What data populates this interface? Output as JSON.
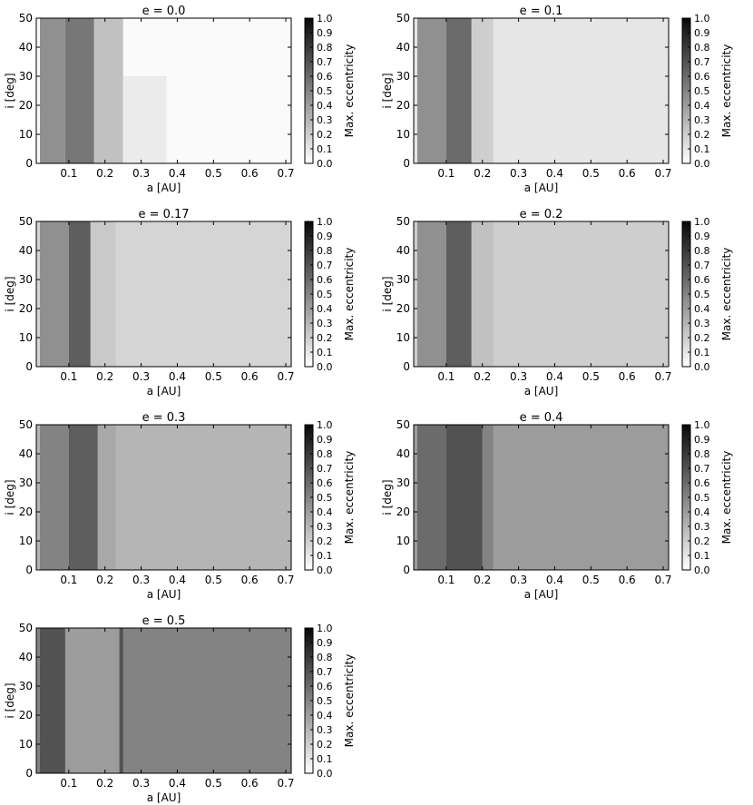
{
  "chart_data": [
    {
      "type": "heatmap",
      "title": "e = 0.0",
      "xlabel": "a [AU]",
      "ylabel": "i [deg]",
      "xlim": [
        0.01,
        0.715
      ],
      "ylim": [
        0,
        50
      ],
      "xticks": [
        "0.1",
        "0.2",
        "0.3",
        "0.4",
        "0.5",
        "0.6",
        "0.7"
      ],
      "yticks": [
        "0",
        "10",
        "20",
        "30",
        "40",
        "50"
      ],
      "background_level": 0.02,
      "features": [
        {
          "a_start": 0.02,
          "a_end": 0.09,
          "level": 0.45,
          "i_max": 50
        },
        {
          "a_start": 0.09,
          "a_end": 0.17,
          "level": 0.55,
          "i_max": 50
        },
        {
          "a_start": 0.17,
          "a_end": 0.25,
          "level": 0.25,
          "i_max": 50
        },
        {
          "a_start": 0.25,
          "a_end": 0.37,
          "level": 0.08,
          "i_max": 30
        }
      ],
      "colorbar": {
        "label": "Max. eccentricity",
        "min": 0.0,
        "max": 1.0,
        "ticks": [
          "0.0",
          "0.1",
          "0.2",
          "0.3",
          "0.4",
          "0.5",
          "0.6",
          "0.7",
          "0.8",
          "0.9",
          "1.0"
        ]
      }
    },
    {
      "type": "heatmap",
      "title": "e = 0.1",
      "xlabel": "a [AU]",
      "ylabel": "i [deg]",
      "xlim": [
        0.01,
        0.715
      ],
      "ylim": [
        0,
        50
      ],
      "xticks": [
        "0.1",
        "0.2",
        "0.3",
        "0.4",
        "0.5",
        "0.6",
        "0.7"
      ],
      "yticks": [
        "0",
        "10",
        "20",
        "30",
        "40",
        "50"
      ],
      "background_level": 0.1,
      "features": [
        {
          "a_start": 0.02,
          "a_end": 0.1,
          "level": 0.45,
          "i_max": 50
        },
        {
          "a_start": 0.1,
          "a_end": 0.17,
          "level": 0.6,
          "i_max": 50
        },
        {
          "a_start": 0.17,
          "a_end": 0.23,
          "level": 0.2,
          "i_max": 50
        }
      ],
      "colorbar": {
        "label": "Max. eccentricity",
        "min": 0.0,
        "max": 1.0,
        "ticks": [
          "0.0",
          "0.1",
          "0.2",
          "0.3",
          "0.4",
          "0.5",
          "0.6",
          "0.7",
          "0.8",
          "0.9",
          "1.0"
        ]
      }
    },
    {
      "type": "heatmap",
      "title": "e = 0.17",
      "xlabel": "a [AU]",
      "ylabel": "i [deg]",
      "xlim": [
        0.01,
        0.715
      ],
      "ylim": [
        0,
        50
      ],
      "xticks": [
        "0.1",
        "0.2",
        "0.3",
        "0.4",
        "0.5",
        "0.6",
        "0.7"
      ],
      "yticks": [
        "0",
        "10",
        "20",
        "30",
        "40",
        "50"
      ],
      "background_level": 0.17,
      "features": [
        {
          "a_start": 0.02,
          "a_end": 0.1,
          "level": 0.45,
          "i_max": 50
        },
        {
          "a_start": 0.1,
          "a_end": 0.16,
          "level": 0.65,
          "i_max": 50
        },
        {
          "a_start": 0.16,
          "a_end": 0.23,
          "level": 0.22,
          "i_max": 50
        }
      ],
      "colorbar": {
        "label": "Max. eccentricity",
        "min": 0.0,
        "max": 1.0,
        "ticks": [
          "0.0",
          "0.1",
          "0.2",
          "0.3",
          "0.4",
          "0.5",
          "0.6",
          "0.7",
          "0.8",
          "0.9",
          "1.0"
        ]
      }
    },
    {
      "type": "heatmap",
      "title": "e = 0.2",
      "xlabel": "a [AU]",
      "ylabel": "i [deg]",
      "xlim": [
        0.01,
        0.715
      ],
      "ylim": [
        0,
        50
      ],
      "xticks": [
        "0.1",
        "0.2",
        "0.3",
        "0.4",
        "0.5",
        "0.6",
        "0.7"
      ],
      "yticks": [
        "0",
        "10",
        "20",
        "30",
        "40",
        "50"
      ],
      "background_level": 0.2,
      "features": [
        {
          "a_start": 0.02,
          "a_end": 0.1,
          "level": 0.45,
          "i_max": 50
        },
        {
          "a_start": 0.1,
          "a_end": 0.17,
          "level": 0.65,
          "i_max": 50
        },
        {
          "a_start": 0.17,
          "a_end": 0.23,
          "level": 0.25,
          "i_max": 50
        }
      ],
      "colorbar": {
        "label": "Max. eccentricity",
        "min": 0.0,
        "max": 1.0,
        "ticks": [
          "0.0",
          "0.1",
          "0.2",
          "0.3",
          "0.4",
          "0.5",
          "0.6",
          "0.7",
          "0.8",
          "0.9",
          "1.0"
        ]
      }
    },
    {
      "type": "heatmap",
      "title": "e = 0.3",
      "xlabel": "a [AU]",
      "ylabel": "i [deg]",
      "xlim": [
        0.01,
        0.715
      ],
      "ylim": [
        0,
        50
      ],
      "xticks": [
        "0.1",
        "0.2",
        "0.3",
        "0.4",
        "0.5",
        "0.6",
        "0.7"
      ],
      "yticks": [
        "0",
        "10",
        "20",
        "30",
        "40",
        "50"
      ],
      "background_level": 0.3,
      "features": [
        {
          "a_start": 0.02,
          "a_end": 0.1,
          "level": 0.5,
          "i_max": 50
        },
        {
          "a_start": 0.1,
          "a_end": 0.18,
          "level": 0.65,
          "i_max": 50
        },
        {
          "a_start": 0.18,
          "a_end": 0.23,
          "level": 0.35,
          "i_max": 50
        }
      ],
      "colorbar": {
        "label": "Max. eccentricity",
        "min": 0.0,
        "max": 1.0,
        "ticks": [
          "0.0",
          "0.1",
          "0.2",
          "0.3",
          "0.4",
          "0.5",
          "0.6",
          "0.7",
          "0.8",
          "0.9",
          "1.0"
        ]
      }
    },
    {
      "type": "heatmap",
      "title": "e = 0.4",
      "xlabel": "a [AU]",
      "ylabel": "i [deg]",
      "xlim": [
        0.01,
        0.715
      ],
      "ylim": [
        0,
        50
      ],
      "xticks": [
        "0.1",
        "0.2",
        "0.3",
        "0.4",
        "0.5",
        "0.6",
        "0.7"
      ],
      "yticks": [
        "0",
        "10",
        "20",
        "30",
        "40",
        "50"
      ],
      "background_level": 0.4,
      "features": [
        {
          "a_start": 0.02,
          "a_end": 0.1,
          "level": 0.6,
          "i_max": 50
        },
        {
          "a_start": 0.1,
          "a_end": 0.2,
          "level": 0.7,
          "i_max": 50
        },
        {
          "a_start": 0.2,
          "a_end": 0.23,
          "level": 0.5,
          "i_max": 50
        }
      ],
      "colorbar": {
        "label": "Max. eccentricity",
        "min": 0.0,
        "max": 1.0,
        "ticks": [
          "0.0",
          "0.1",
          "0.2",
          "0.3",
          "0.4",
          "0.5",
          "0.6",
          "0.7",
          "0.8",
          "0.9",
          "1.0"
        ]
      }
    },
    {
      "type": "heatmap",
      "title": "e = 0.5",
      "xlabel": "a [AU]",
      "ylabel": "i [deg]",
      "xlim": [
        0.01,
        0.715
      ],
      "ylim": [
        0,
        50
      ],
      "xticks": [
        "0.1",
        "0.2",
        "0.3",
        "0.4",
        "0.5",
        "0.6",
        "0.7"
      ],
      "yticks": [
        "0",
        "10",
        "20",
        "30",
        "40",
        "50"
      ],
      "background_level": 0.5,
      "features": [
        {
          "a_start": 0.02,
          "a_end": 0.09,
          "level": 0.7,
          "i_max": 50
        },
        {
          "a_start": 0.09,
          "a_end": 0.24,
          "level": 0.4,
          "i_max": 50
        },
        {
          "a_start": 0.24,
          "a_end": 0.25,
          "level": 0.7,
          "i_max": 50
        }
      ],
      "colorbar": {
        "label": "Max. eccentricity",
        "min": 0.0,
        "max": 1.0,
        "ticks": [
          "0.0",
          "0.1",
          "0.2",
          "0.3",
          "0.4",
          "0.5",
          "0.6",
          "0.7",
          "0.8",
          "0.9",
          "1.0"
        ]
      }
    }
  ]
}
